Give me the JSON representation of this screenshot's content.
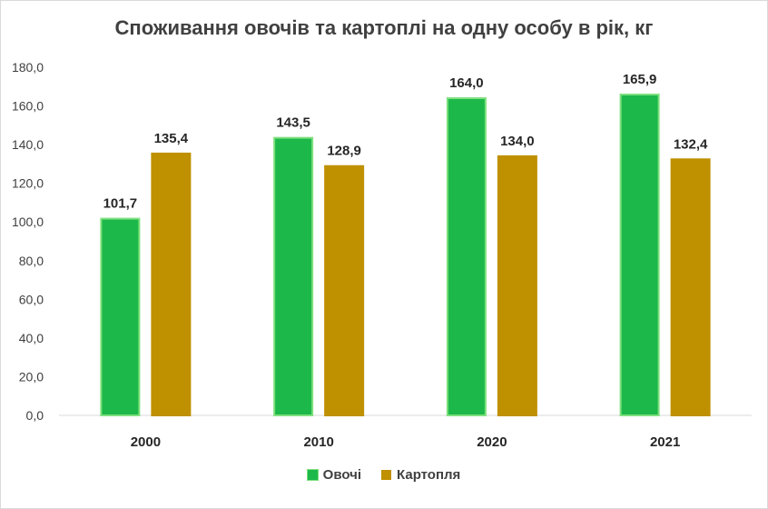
{
  "chart_data": {
    "type": "bar",
    "title": "Споживання овочів та картоплі на одну особу в рік, кг",
    "categories": [
      "2000",
      "2010",
      "2020",
      "2021"
    ],
    "series": [
      {
        "name": "Овочі",
        "color": "#1db84a",
        "border": "#7ee07e",
        "values": [
          101.7,
          143.5,
          164.0,
          165.9
        ],
        "labels": [
          "101,7",
          "143,5",
          "164,0",
          "165,9"
        ]
      },
      {
        "name": "Картопля",
        "color": "#bf9000",
        "border": "#bf9000",
        "values": [
          135.4,
          128.9,
          134.0,
          132.4
        ],
        "labels": [
          "135,4",
          "128,9",
          "134,0",
          "132,4"
        ]
      }
    ],
    "ylim": [
      0,
      180
    ],
    "yticks": [
      0,
      20,
      40,
      60,
      80,
      100,
      120,
      140,
      160,
      180
    ],
    "ytick_labels": [
      "0,0",
      "20,0",
      "40,0",
      "60,0",
      "80,0",
      "100,0",
      "120,0",
      "140,0",
      "160,0",
      "180,0"
    ],
    "grid": false,
    "legend_position": "bottom"
  }
}
